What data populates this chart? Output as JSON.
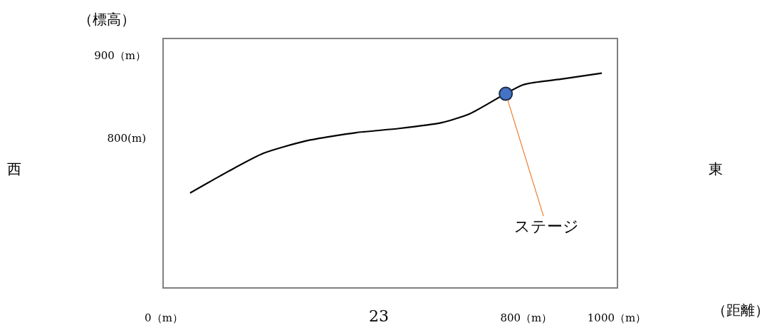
{
  "chart_data": {
    "type": "line",
    "xlabel": "（距離）",
    "ylabel": "（標高）",
    "xlim": [
      0,
      1000
    ],
    "xticks": [
      {
        "value": 0,
        "label": "0（m）"
      },
      {
        "value": 800,
        "label": "800（m）"
      },
      {
        "value": 1000,
        "label": "1000（m）"
      }
    ],
    "ylim": [
      620,
      920
    ],
    "yticks": [
      {
        "value": 800,
        "label": "800(m)"
      },
      {
        "value": 900,
        "label": "900（m）"
      }
    ],
    "grid": false,
    "series": [
      {
        "color": "#000000",
        "marker": "none",
        "line_style": "solid",
        "x": [
          58,
          142,
          220,
          314,
          425,
          519,
          613,
          676,
          794,
          881,
          967
        ],
        "values": [
          734,
          760,
          782,
          797,
          807,
          812,
          819,
          830,
          865,
          872,
          879
        ]
      },
      {
        "type": "scatter",
        "color": "#4472c4",
        "marker": "circle",
        "x": [
          755
        ],
        "values": [
          854
        ]
      }
    ],
    "annotations": [
      "西",
      "東",
      "23",
      {
        "text": "ステージ",
        "x": 755,
        "y": 854
      }
    ]
  }
}
